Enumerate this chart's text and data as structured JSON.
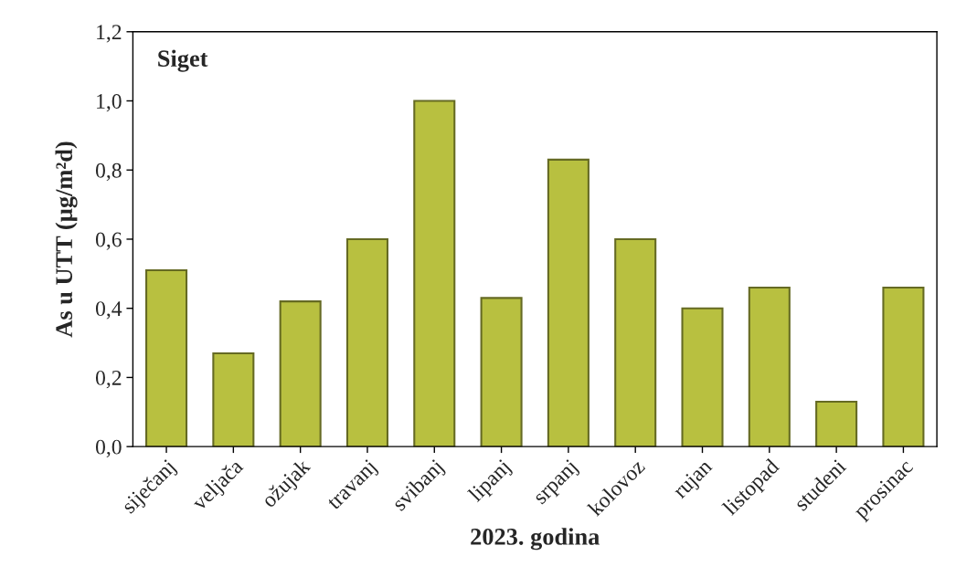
{
  "chart_data": {
    "type": "bar",
    "title": "Siget",
    "xlabel": "2023. godina",
    "ylabel": "As u UTT (µg/m²d)",
    "categories": [
      "siječanj",
      "veljača",
      "ožujak",
      "travanj",
      "svibanj",
      "lipanj",
      "srpanj",
      "kolovoz",
      "rujan",
      "listopad",
      "studeni",
      "prosinac"
    ],
    "values": [
      0.51,
      0.27,
      0.42,
      0.6,
      1.0,
      0.43,
      0.83,
      0.6,
      0.4,
      0.46,
      0.13,
      0.46
    ],
    "color": "#b8c040",
    "ylim": [
      0,
      1.2
    ],
    "yticks": [
      {
        "value": 0,
        "label": "0,0"
      },
      {
        "value": 0.2,
        "label": "0,2"
      },
      {
        "value": 0.4,
        "label": "0,4"
      },
      {
        "value": 0.6,
        "label": "0,6"
      },
      {
        "value": 0.8,
        "label": "0,8"
      },
      {
        "value": 1.0,
        "label": "1,0"
      },
      {
        "value": 1.2,
        "label": "1,2"
      }
    ],
    "grid": false,
    "legend": false
  }
}
